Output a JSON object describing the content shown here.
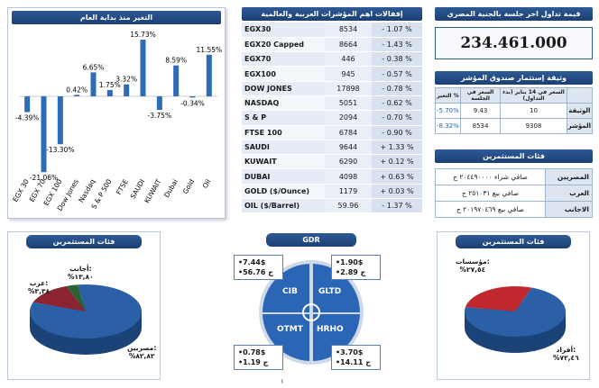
{
  "chart_data": {
    "type": "bar",
    "title": "التغير منذ بداية العام",
    "categories": [
      "EGX 30",
      "EGX 70",
      "EGX 100",
      "Dow Jones",
      "Nasdaq",
      "S & P 500",
      "FTSE",
      "SAUDI",
      "KUWAIT",
      "Dubai",
      "Gold",
      "Oil"
    ],
    "values": [
      -4.39,
      -21.06,
      -13.3,
      0.42,
      6.65,
      1.75,
      3.32,
      15.73,
      -3.75,
      8.59,
      -0.34,
      11.55
    ],
    "data_labels": [
      "-4.39%",
      "-21.06%",
      "-13.30%",
      "0.42%",
      "6.65%",
      "1.75%",
      "3.32%",
      "15.73%",
      "-3.75%",
      "8.59%",
      "-0.34%",
      "11.55%"
    ],
    "ylim": [
      -22,
      17
    ],
    "color": "#2e6bb8"
  },
  "indices": {
    "title": "إقفالات اهم المؤشرات العربية والعالمية",
    "rows": [
      {
        "name": "EGX30",
        "value": "8534",
        "change": "- 1.07 %"
      },
      {
        "name": "EGX20 Capped",
        "value": "8664",
        "change": "- 1.43 %"
      },
      {
        "name": "EGX70",
        "value": "446",
        "change": "- 0.38 %"
      },
      {
        "name": "EGX100",
        "value": "945",
        "change": "- 0.57 %"
      },
      {
        "name": "DOW JONES",
        "value": "17898",
        "change": "- 0.78 %"
      },
      {
        "name": "NASDAQ",
        "value": "5051",
        "change": "- 0.62 %"
      },
      {
        "name": "S & P",
        "value": "2094",
        "change": "- 0.70 %"
      },
      {
        "name": "FTSE 100",
        "value": "6784",
        "change": "- 0.90 %"
      },
      {
        "name": "SAUDI",
        "value": "9644",
        "change": "+ 1.33 %"
      },
      {
        "name": "KUWAIT",
        "value": "6290",
        "change": "+ 0.12 %"
      },
      {
        "name": "DUBAI",
        "value": "4098",
        "change": "+ 0.63 %"
      },
      {
        "name": "GOLD ($/Ounce)",
        "value": "1179",
        "change": "+ 0.03 %"
      },
      {
        "name": "OIL ($/Barrel)",
        "value": "59.96",
        "change": "- 1.37 %"
      }
    ]
  },
  "turnover": {
    "title": "قيمة تداول اخر جلسة بالجنية المصري",
    "value": "234.461.000"
  },
  "fund": {
    "title": "وثيقة إستثمار صندوق المؤشر",
    "headers": [
      "التغير %",
      "السعر في الجلسة",
      "السعر في 14 يناير (بدء التداول)",
      ""
    ],
    "rows": [
      {
        "change": "-5.70%",
        "session": "9.43",
        "start": "10",
        "label": "الوثيقة"
      },
      {
        "change": "-8.32%",
        "session": "8534",
        "start": "9308",
        "label": "المؤشر"
      }
    ]
  },
  "investors": {
    "title": "فئات المستثمرين",
    "rows": [
      {
        "label": "المصريين",
        "value": "صافي شراء ٢٠٤٤٩٠٠٠٠ ج"
      },
      {
        "label": "العرب",
        "value": "صافي بيع ٢٥١٠٣١ ج"
      },
      {
        "label": "الاجانب",
        "value": "صافي بيع ٢٠١٩٧٠٤٦٩ ج"
      }
    ]
  },
  "pie_left": {
    "title": "فئات المستثمرين",
    "labels": [
      {
        "name": "أجانب:",
        "pct": "%١٣,٨٠"
      },
      {
        "name": "عرب:",
        "pct": "%٣,٣٨"
      },
      {
        "name": "مصريين:",
        "pct": "%٨٢,٨٢"
      }
    ],
    "values": [
      13.8,
      3.38,
      82.82
    ],
    "colors": [
      "#8c2330",
      "#2a6332",
      "#2b5fa6"
    ]
  },
  "pie_right": {
    "title": "فئات المستثمرين",
    "labels": [
      {
        "name": "مؤسسات:",
        "pct": "%٢٧,٥٤"
      },
      {
        "name": "أفراد:",
        "pct": "%٧٢,٤٦"
      }
    ],
    "values": [
      27.54,
      72.46
    ],
    "colors": [
      "#c0282d",
      "#2b5fa6"
    ]
  },
  "gdr": {
    "title": "GDR",
    "segments": [
      "CIB",
      "GLTD",
      "OTMT",
      "HRHO"
    ],
    "boxes": [
      {
        "usd": "•7.44$",
        "egp": "•56.76 ج"
      },
      {
        "usd": "•1.90$",
        "egp": "•2.89 ج"
      },
      {
        "usd": "•0.78$",
        "egp": "•1.19 ج"
      },
      {
        "usd": "•3.70$",
        "egp": "•14.11 ج"
      }
    ]
  },
  "page_number": "١"
}
